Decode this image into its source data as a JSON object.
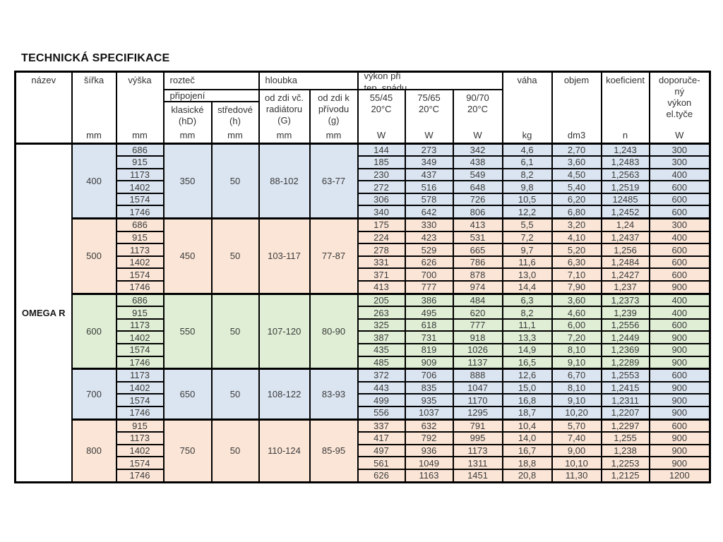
{
  "page": {
    "title": "TECHNICKÁ SPECIFIKACE"
  },
  "table": {
    "product": "OMEGA R",
    "colors": {
      "blue": "#dbe5f1",
      "peach": "#fbe5d6",
      "green": "#dfeed4",
      "header": "#ffffff"
    },
    "header": {
      "nazev": "název",
      "sirka": {
        "label": "šířka",
        "unit": "mm"
      },
      "vyska": {
        "label": "výška",
        "unit": "mm"
      },
      "roztec": "rozteč",
      "pripojeni": "připojení",
      "klasicke": {
        "line1": "klasické",
        "line2": "(hD)",
        "unit": "mm"
      },
      "stredove": {
        "line1": "středové",
        "line2": "(h)",
        "unit": "mm"
      },
      "hloubka": "hloubka",
      "od_zdi_radiator": {
        "line1": "od zdi vč.",
        "line2": "radiátoru",
        "line3": "(G)",
        "unit": "mm"
      },
      "od_zdi_privod": {
        "line1": "od zdi k",
        "line2": "přívodu",
        "line3": "(g)",
        "unit": "mm"
      },
      "vykon": {
        "line1": "výkon při",
        "line2": "tep. spádu"
      },
      "p5545": {
        "line1": "55/45",
        "line2": "20°C",
        "unit": "W"
      },
      "p7565": {
        "line1": "75/65",
        "line2": "20°C",
        "unit": "W"
      },
      "p9070": {
        "line1": "90/70",
        "line2": "20°C",
        "unit": "W"
      },
      "vaha": {
        "label": "váha",
        "unit": "kg"
      },
      "objem": {
        "label": "objem",
        "unit": "dm3"
      },
      "koeficient": {
        "label": "koeficient",
        "unit": "n"
      },
      "doporuceny": {
        "lines": [
          "doporuče-",
          "ný",
          "výkon",
          "el.tyče"
        ],
        "unit": "W"
      }
    },
    "groups": [
      {
        "sirka": "400",
        "color": "blue",
        "klasicke": "350",
        "stredove": "50",
        "hloubka_G": "88-102",
        "hloubka_g": "63-77",
        "rows": [
          [
            "686",
            "144",
            "273",
            "342",
            "4,6",
            "2,70",
            "1,243",
            "300"
          ],
          [
            "915",
            "185",
            "349",
            "438",
            "6,1",
            "3,60",
            "1,2483",
            "300"
          ],
          [
            "1173",
            "230",
            "437",
            "549",
            "8,2",
            "4,50",
            "1,2563",
            "400"
          ],
          [
            "1402",
            "272",
            "516",
            "648",
            "9,8",
            "5,40",
            "1,2519",
            "600"
          ],
          [
            "1574",
            "306",
            "578",
            "726",
            "10,5",
            "6,20",
            "12485",
            "600"
          ],
          [
            "1746",
            "340",
            "642",
            "806",
            "12,2",
            "6,80",
            "1,2452",
            "600"
          ]
        ]
      },
      {
        "sirka": "500",
        "color": "peach",
        "klasicke": "450",
        "stredove": "50",
        "hloubka_G": "103-117",
        "hloubka_g": "77-87",
        "rows": [
          [
            "686",
            "175",
            "330",
            "413",
            "5,5",
            "3,20",
            "1,24",
            "300"
          ],
          [
            "915",
            "224",
            "423",
            "531",
            "7,2",
            "4,10",
            "1,2437",
            "400"
          ],
          [
            "1173",
            "278",
            "529",
            "665",
            "9,7",
            "5,20",
            "1,256",
            "600"
          ],
          [
            "1402",
            "331",
            "626",
            "786",
            "11,6",
            "6,30",
            "1,2484",
            "600"
          ],
          [
            "1574",
            "371",
            "700",
            "878",
            "13,0",
            "7,10",
            "1,2427",
            "600"
          ],
          [
            "1746",
            "413",
            "777",
            "974",
            "14,4",
            "7,90",
            "1,237",
            "900"
          ]
        ]
      },
      {
        "sirka": "600",
        "color": "green",
        "klasicke": "550",
        "stredove": "50",
        "hloubka_G": "107-120",
        "hloubka_g": "80-90",
        "rows": [
          [
            "686",
            "205",
            "386",
            "484",
            "6,3",
            "3,60",
            "1,2373",
            "400"
          ],
          [
            "915",
            "263",
            "495",
            "620",
            "8,2",
            "4,60",
            "1,239",
            "400"
          ],
          [
            "1173",
            "325",
            "618",
            "777",
            "11,1",
            "6,00",
            "1,2556",
            "600"
          ],
          [
            "1402",
            "387",
            "731",
            "918",
            "13,3",
            "7,20",
            "1,2449",
            "900"
          ],
          [
            "1574",
            "435",
            "819",
            "1026",
            "14,9",
            "8,10",
            "1,2369",
            "900"
          ],
          [
            "1746",
            "485",
            "909",
            "1137",
            "16,5",
            "9,10",
            "1,2289",
            "900"
          ]
        ]
      },
      {
        "sirka": "700",
        "color": "blue",
        "klasicke": "650",
        "stredove": "50",
        "hloubka_G": "108-122",
        "hloubka_g": "83-93",
        "rows": [
          [
            "1173",
            "372",
            "706",
            "888",
            "12,6",
            "6,70",
            "1,2553",
            "600"
          ],
          [
            "1402",
            "443",
            "835",
            "1047",
            "15,0",
            "8,10",
            "1,2415",
            "900"
          ],
          [
            "1574",
            "499",
            "935",
            "1170",
            "16,8",
            "9,10",
            "1,2311",
            "900"
          ],
          [
            "1746",
            "556",
            "1037",
            "1295",
            "18,7",
            "10,20",
            "1,2207",
            "900"
          ]
        ]
      },
      {
        "sirka": "800",
        "color": "peach",
        "klasicke": "750",
        "stredove": "50",
        "hloubka_G": "110-124",
        "hloubka_g": "85-95",
        "rows": [
          [
            "915",
            "337",
            "632",
            "791",
            "10,4",
            "5,70",
            "1,2297",
            "600"
          ],
          [
            "1173",
            "417",
            "792",
            "995",
            "14,0",
            "7,40",
            "1,255",
            "900"
          ],
          [
            "1402",
            "497",
            "936",
            "1173",
            "16,7",
            "9,00",
            "1,238",
            "900"
          ],
          [
            "1574",
            "561",
            "1049",
            "1311",
            "18,8",
            "10,10",
            "1,2253",
            "900"
          ],
          [
            "1746",
            "626",
            "1163",
            "1451",
            "20,8",
            "11,30",
            "1,2125",
            "1200"
          ]
        ]
      }
    ]
  }
}
